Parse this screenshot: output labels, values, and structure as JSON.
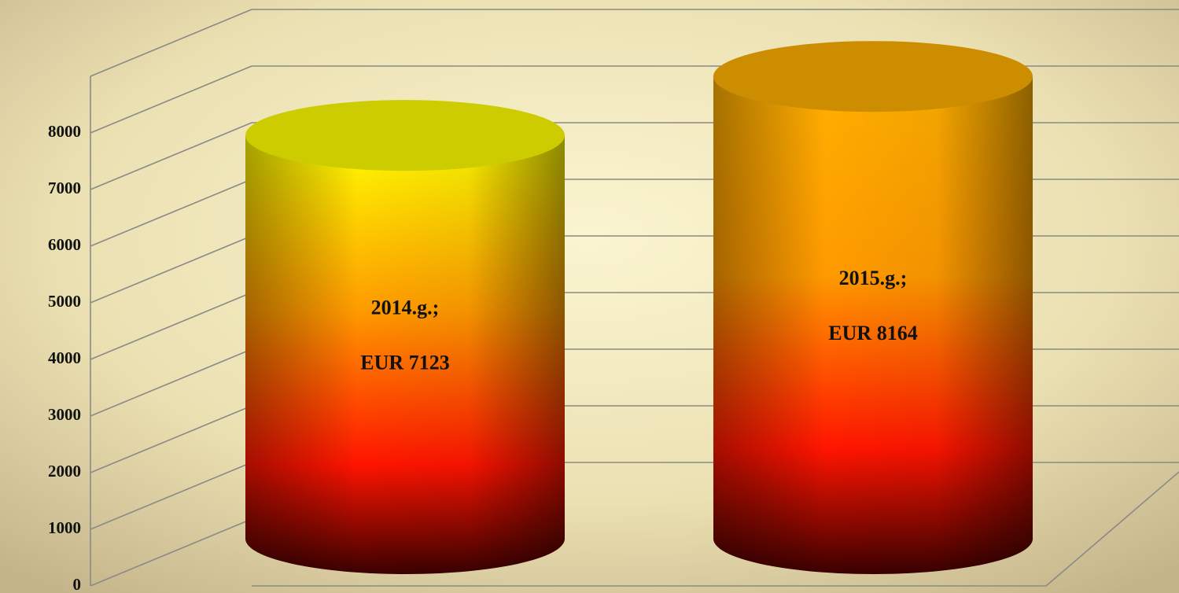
{
  "chart_data": {
    "type": "cylinder",
    "categories": [
      "2014.g.;",
      "2015.g.;"
    ],
    "values": [
      7123,
      8164
    ],
    "value_labels": [
      "EUR 7123",
      "EUR 8164"
    ],
    "colors": [
      "#ffff00",
      "#ffb000"
    ],
    "ylim": [
      0,
      9000
    ],
    "yticks": [
      0,
      1000,
      2000,
      3000,
      4000,
      5000,
      6000,
      7000,
      8000
    ],
    "grid": true
  }
}
